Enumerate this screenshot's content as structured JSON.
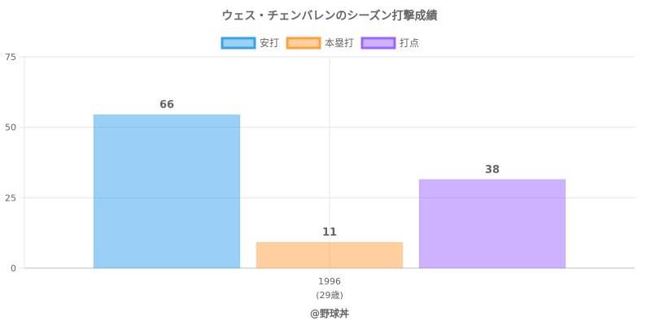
{
  "chart_data": {
    "type": "bar",
    "title": "ウェス・チェンバレンのシーズン打撃成績",
    "categories": [
      "1996"
    ],
    "category_sublabels": [
      "(29歳)"
    ],
    "series": [
      {
        "name": "安打",
        "values": [
          66
        ],
        "bar_values": [
          54.5
        ],
        "color": "#36a2eb"
      },
      {
        "name": "本塁打",
        "values": [
          11
        ],
        "bar_values": [
          9.2
        ],
        "color": "#ff9f40"
      },
      {
        "name": "打点",
        "values": [
          38
        ],
        "bar_values": [
          31.5
        ],
        "color": "#9966ff"
      }
    ],
    "yticks": [
      0,
      25,
      50,
      75
    ],
    "ylim": [
      0,
      75
    ],
    "grid": true,
    "legend_position": "top"
  },
  "credit": "@野球丼"
}
